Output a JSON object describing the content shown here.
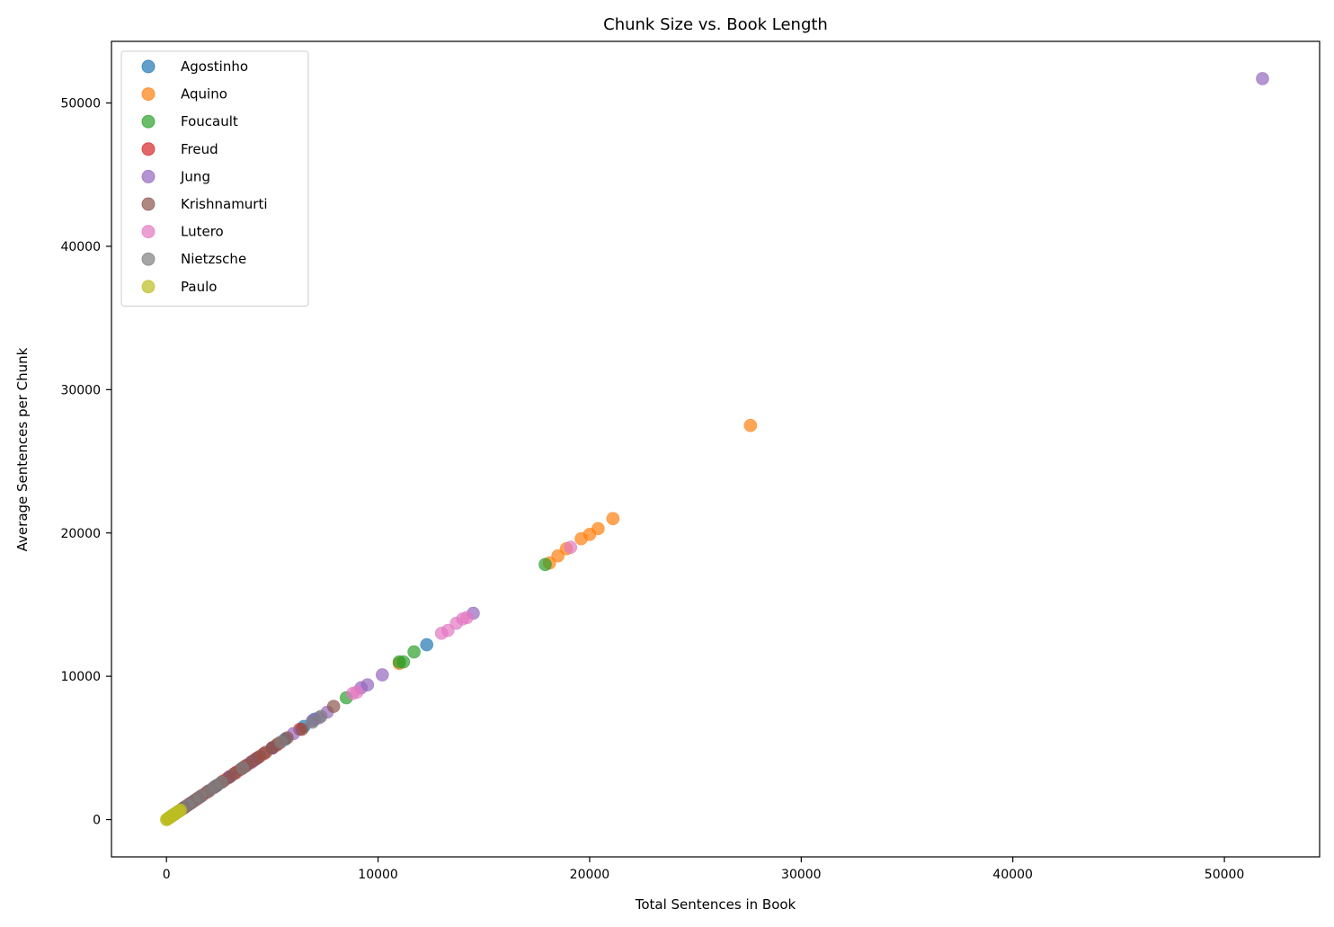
{
  "chart_data": {
    "type": "scatter",
    "title": "Chunk Size vs. Book Length",
    "xlabel": "Total Sentences in Book",
    "ylabel": "Average Sentences per Chunk",
    "xlim": [
      -2600,
      54500
    ],
    "ylim": [
      -2600,
      54300
    ],
    "xticks": [
      0,
      10000,
      20000,
      30000,
      40000,
      50000
    ],
    "yticks": [
      0,
      10000,
      20000,
      30000,
      40000,
      50000
    ],
    "xtick_labels": [
      "0",
      "10000",
      "20000",
      "30000",
      "40000",
      "50000"
    ],
    "ytick_labels": [
      "0",
      "10000",
      "20000",
      "30000",
      "40000",
      "50000"
    ],
    "grid": false,
    "legend_position": "top-left",
    "series": [
      {
        "name": "Agostinho",
        "color": "#1f77b4",
        "points": [
          [
            100,
            100
          ],
          [
            250,
            250
          ],
          [
            400,
            400
          ],
          [
            600,
            600
          ],
          [
            800,
            800
          ],
          [
            1000,
            1000
          ],
          [
            1300,
            1300
          ],
          [
            1600,
            1600
          ],
          [
            2000,
            2000
          ],
          [
            2400,
            2400
          ],
          [
            3000,
            3000
          ],
          [
            3600,
            3600
          ],
          [
            4200,
            4200
          ],
          [
            5000,
            5000
          ],
          [
            5600,
            5600
          ],
          [
            6500,
            6500
          ],
          [
            7000,
            7000
          ],
          [
            12300,
            12200
          ]
        ]
      },
      {
        "name": "Aquino",
        "color": "#ff7f0e",
        "points": [
          [
            11000,
            10900
          ],
          [
            18100,
            17900
          ],
          [
            18500,
            18400
          ],
          [
            18900,
            18900
          ],
          [
            19600,
            19600
          ],
          [
            20000,
            19900
          ],
          [
            20400,
            20300
          ],
          [
            21100,
            21000
          ],
          [
            27600,
            27500
          ]
        ]
      },
      {
        "name": "Foucault",
        "color": "#2ca02c",
        "points": [
          [
            8500,
            8500
          ],
          [
            11000,
            11000
          ],
          [
            11200,
            11000
          ],
          [
            11700,
            11700
          ],
          [
            17900,
            17800
          ]
        ]
      },
      {
        "name": "Freud",
        "color": "#d62728",
        "points": [
          [
            600,
            600
          ],
          [
            900,
            900
          ],
          [
            1200,
            1200
          ],
          [
            1500,
            1500
          ],
          [
            1900,
            1900
          ],
          [
            2300,
            2300
          ],
          [
            2700,
            2700
          ],
          [
            3000,
            3000
          ],
          [
            3300,
            3300
          ],
          [
            3700,
            3700
          ],
          [
            4000,
            4000
          ],
          [
            4300,
            4300
          ],
          [
            4600,
            4600
          ],
          [
            5000,
            5000
          ],
          [
            5300,
            5300
          ],
          [
            6300,
            6300
          ]
        ]
      },
      {
        "name": "Jung",
        "color": "#9467bd",
        "points": [
          [
            300,
            300
          ],
          [
            700,
            700
          ],
          [
            1100,
            1100
          ],
          [
            1600,
            1600
          ],
          [
            2200,
            2200
          ],
          [
            3000,
            3000
          ],
          [
            4000,
            4000
          ],
          [
            5000,
            5000
          ],
          [
            6000,
            6000
          ],
          [
            6900,
            6900
          ],
          [
            7200,
            7100
          ],
          [
            7600,
            7500
          ],
          [
            9200,
            9200
          ],
          [
            9500,
            9400
          ],
          [
            10200,
            10100
          ],
          [
            14500,
            14400
          ],
          [
            51800,
            51700
          ]
        ]
      },
      {
        "name": "Krishnamurti",
        "color": "#8c564b",
        "points": [
          [
            200,
            200
          ],
          [
            500,
            500
          ],
          [
            800,
            800
          ],
          [
            1100,
            1100
          ],
          [
            1400,
            1400
          ],
          [
            1700,
            1700
          ],
          [
            2000,
            2000
          ],
          [
            2300,
            2300
          ],
          [
            2600,
            2600
          ],
          [
            2900,
            2900
          ],
          [
            3200,
            3200
          ],
          [
            3500,
            3500
          ],
          [
            3800,
            3800
          ],
          [
            4100,
            4100
          ],
          [
            4400,
            4400
          ],
          [
            4700,
            4700
          ],
          [
            5000,
            5000
          ],
          [
            5200,
            5200
          ],
          [
            5700,
            5700
          ],
          [
            6400,
            6300
          ],
          [
            7900,
            7900
          ]
        ]
      },
      {
        "name": "Lutero",
        "color": "#e377c2",
        "points": [
          [
            8800,
            8800
          ],
          [
            9000,
            8900
          ],
          [
            13000,
            13000
          ],
          [
            13300,
            13200
          ],
          [
            13700,
            13700
          ],
          [
            14000,
            14000
          ],
          [
            14200,
            14100
          ],
          [
            19100,
            19000
          ]
        ]
      },
      {
        "name": "Nietzsche",
        "color": "#7f7f7f",
        "points": [
          [
            300,
            300
          ],
          [
            700,
            700
          ],
          [
            1000,
            1000
          ],
          [
            1300,
            1300
          ],
          [
            1600,
            1600
          ],
          [
            2000,
            2000
          ],
          [
            2300,
            2300
          ],
          [
            2600,
            2600
          ],
          [
            3600,
            3600
          ],
          [
            5400,
            5400
          ],
          [
            6900,
            6800
          ],
          [
            7300,
            7200
          ]
        ]
      },
      {
        "name": "Paulo",
        "color": "#bcbd22",
        "points": [
          [
            0,
            0
          ],
          [
            40,
            40
          ],
          [
            80,
            80
          ],
          [
            120,
            120
          ],
          [
            160,
            160
          ],
          [
            200,
            200
          ],
          [
            240,
            240
          ],
          [
            280,
            280
          ],
          [
            330,
            330
          ],
          [
            380,
            380
          ],
          [
            430,
            430
          ],
          [
            480,
            480
          ],
          [
            540,
            540
          ],
          [
            600,
            600
          ],
          [
            660,
            660
          ]
        ]
      }
    ]
  }
}
